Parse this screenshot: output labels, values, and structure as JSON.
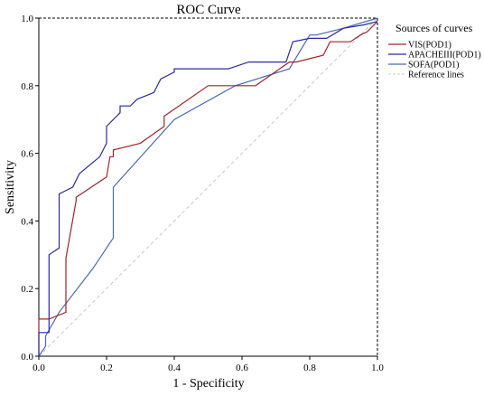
{
  "chart_data": {
    "type": "line",
    "title": "ROC Curve",
    "xlabel": "1 - Specificity",
    "ylabel": "Sensitivity",
    "xlim": [
      0,
      1
    ],
    "ylim": [
      0,
      1
    ],
    "x_ticks": [
      "0.0",
      "0.2",
      "0.4",
      "0.6",
      "0.8",
      "1.0"
    ],
    "y_ticks": [
      "0.0",
      "0.2",
      "0.4",
      "0.6",
      "0.8",
      "1.0"
    ],
    "grid": false,
    "legend": {
      "title": "Sources of curves",
      "placement": "right"
    },
    "series": [
      {
        "name": "VIS(POD1)",
        "color": "#a0242a",
        "x": [
          0.0,
          0.0,
          0.03,
          0.03,
          0.08,
          0.08,
          0.11,
          0.11,
          0.2,
          0.21,
          0.22,
          0.22,
          0.3,
          0.37,
          0.37,
          0.5,
          0.64,
          0.74,
          0.76,
          0.84,
          0.86,
          0.92,
          0.95,
          0.97,
          1.0
        ],
        "y": [
          0.0,
          0.11,
          0.11,
          0.11,
          0.13,
          0.29,
          0.46,
          0.47,
          0.53,
          0.59,
          0.59,
          0.61,
          0.63,
          0.68,
          0.71,
          0.8,
          0.8,
          0.87,
          0.87,
          0.89,
          0.93,
          0.93,
          0.95,
          0.96,
          0.99
        ]
      },
      {
        "name": "APACHEIII(POD1)",
        "color": "#2a2aa5",
        "x": [
          0.0,
          0.0,
          0.03,
          0.03,
          0.06,
          0.06,
          0.1,
          0.12,
          0.12,
          0.18,
          0.2,
          0.2,
          0.24,
          0.24,
          0.27,
          0.29,
          0.34,
          0.36,
          0.4,
          0.4,
          0.56,
          0.62,
          0.73,
          0.75,
          0.8,
          0.85,
          0.9,
          0.96,
          1.0
        ],
        "y": [
          0.0,
          0.07,
          0.07,
          0.3,
          0.32,
          0.48,
          0.5,
          0.54,
          0.54,
          0.59,
          0.63,
          0.68,
          0.72,
          0.74,
          0.74,
          0.76,
          0.78,
          0.82,
          0.84,
          0.85,
          0.85,
          0.87,
          0.87,
          0.93,
          0.94,
          0.94,
          0.97,
          0.98,
          0.99
        ]
      },
      {
        "name": "SOFA(POD1)",
        "color": "#4a6ab5",
        "x": [
          0.0,
          0.02,
          0.02,
          0.06,
          0.16,
          0.22,
          0.22,
          0.4,
          0.58,
          0.74,
          0.8,
          0.82,
          0.9,
          1.0
        ],
        "y": [
          0.0,
          0.03,
          0.06,
          0.13,
          0.26,
          0.35,
          0.5,
          0.7,
          0.8,
          0.85,
          0.95,
          0.95,
          0.97,
          1.0
        ]
      },
      {
        "name": "Reference lines",
        "color": "#bbbbbb",
        "dashed": true,
        "x": [
          0,
          1
        ],
        "y": [
          0,
          1
        ]
      }
    ]
  }
}
